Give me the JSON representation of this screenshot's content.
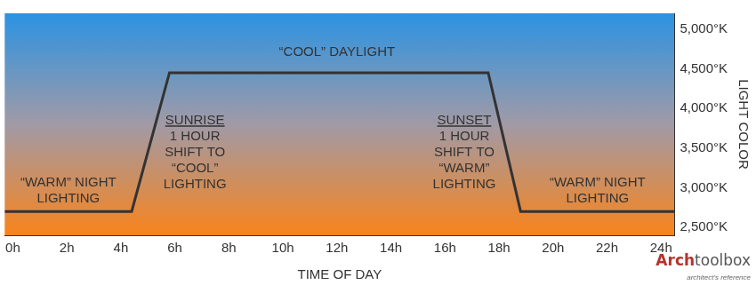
{
  "chart_data": {
    "type": "line",
    "x_label": "TIME OF DAY",
    "y_label": "LIGHT COLOR",
    "x": [
      -0.3,
      4.4,
      5.8,
      17.6,
      18.8,
      24.5
    ],
    "values": [
      2700,
      2700,
      4450,
      4450,
      2700,
      2700
    ],
    "color": "#333333",
    "xlim": [
      -0.3,
      24.5
    ],
    "xticks": [
      {
        "value": 0,
        "label": "0h"
      },
      {
        "value": 2,
        "label": "2h"
      },
      {
        "value": 4,
        "label": "4h"
      },
      {
        "value": 6,
        "label": "6h"
      },
      {
        "value": 8,
        "label": "8h"
      },
      {
        "value": 10,
        "label": "10h"
      },
      {
        "value": 12,
        "label": "12h"
      },
      {
        "value": 14,
        "label": "14h"
      },
      {
        "value": 16,
        "label": "16h"
      },
      {
        "value": 18,
        "label": "18h"
      },
      {
        "value": 20,
        "label": "20h"
      },
      {
        "value": 22,
        "label": "22h"
      },
      {
        "value": 24,
        "label": "24h"
      }
    ],
    "ylim": [
      2400,
      5200
    ],
    "yticks": [
      {
        "value": 2500,
        "label": "2,500°K"
      },
      {
        "value": 3000,
        "label": "3,000°K"
      },
      {
        "value": 3500,
        "label": "3,500°K"
      },
      {
        "value": 4000,
        "label": "4,000°K"
      },
      {
        "value": 4500,
        "label": "4,500°K"
      },
      {
        "value": 5000,
        "label": "5,000°K"
      }
    ],
    "grid": false,
    "legend": false,
    "annotations": [
      {
        "lines": [
          "“COOL” DAYLIGHT"
        ]
      },
      {
        "lines": [
          "“WARM” NIGHT",
          "LIGHTING"
        ]
      },
      {
        "lines": [
          "SUNRISE",
          "1 HOUR",
          "SHIFT TO",
          "“COOL”",
          "LIGHTING"
        ]
      },
      {
        "lines": [
          "SUNSET",
          "1 HOUR",
          "SHIFT TO",
          "“WARM”",
          "LIGHTING"
        ]
      },
      {
        "lines": [
          "“WARM” NIGHT",
          "LIGHTING"
        ]
      }
    ],
    "watermark": {
      "text": [
        "Arch",
        "toolbox"
      ],
      "subtitle": "architect's reference"
    }
  }
}
